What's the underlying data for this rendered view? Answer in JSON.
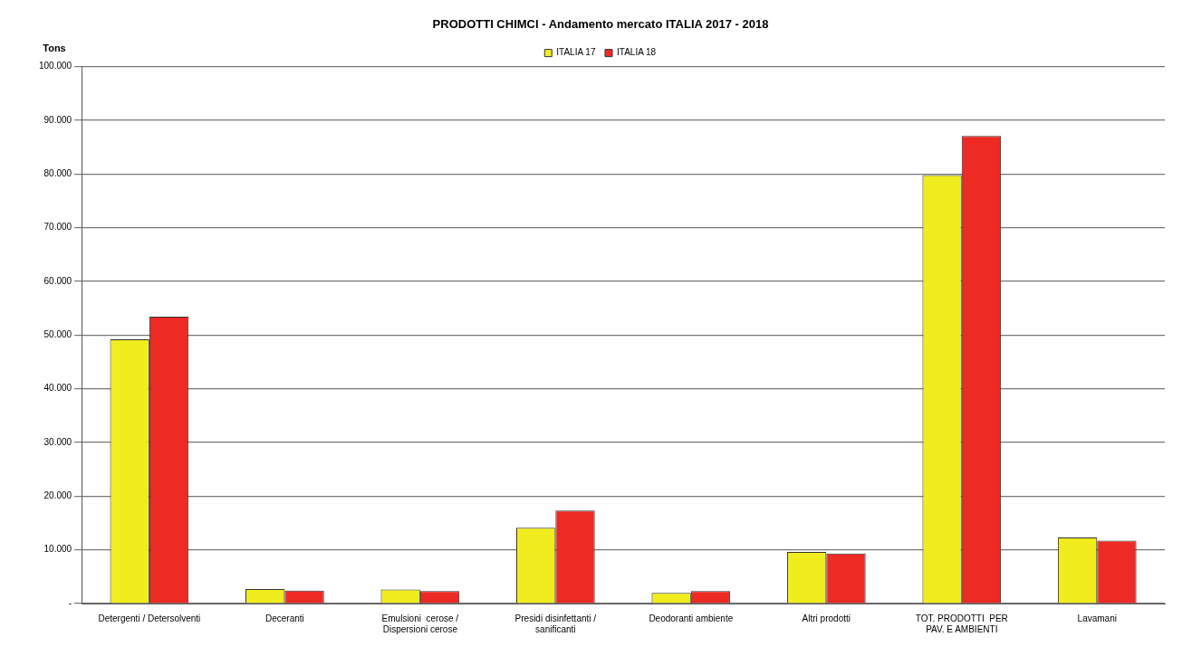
{
  "chart_data": {
    "type": "bar",
    "title": "PRODOTTI CHIMCI - Andamento mercato ITALIA 2017 - 2018",
    "ylabel": "Tons",
    "categories": [
      "Detergenti / Detersolventi",
      "Deceranti",
      [
        "Emulsioni  cerose /",
        "Dispersioni cerose"
      ],
      [
        "Presidi disinfettanti /",
        "sanificanti"
      ],
      "Deodoranti ambiente",
      "Altri prodotti",
      [
        "TOT. PRODOTTI  PER",
        "PAV. E AMBIENTI"
      ],
      "Lavamani"
    ],
    "series": [
      {
        "name": "ITALIA 17",
        "color": "#f0ec1e",
        "values": [
          49200,
          2700,
          2600,
          14100,
          2000,
          9600,
          79800,
          12300
        ]
      },
      {
        "name": "ITALIA 18",
        "color": "#ee2a24",
        "values": [
          53400,
          2400,
          2300,
          17300,
          2300,
          9300,
          87100,
          11700
        ]
      }
    ],
    "ylim": [
      0,
      100000
    ],
    "yticks": [
      {
        "value": 0,
        "label": "-"
      },
      {
        "value": 10000,
        "label": "10.000"
      },
      {
        "value": 20000,
        "label": "20.000"
      },
      {
        "value": 30000,
        "label": "30.000"
      },
      {
        "value": 40000,
        "label": "40.000"
      },
      {
        "value": 50000,
        "label": "50.000"
      },
      {
        "value": 60000,
        "label": "60.000"
      },
      {
        "value": 70000,
        "label": "70.000"
      },
      {
        "value": 80000,
        "label": "80.000"
      },
      {
        "value": 90000,
        "label": "90.000"
      },
      {
        "value": 100000,
        "label": "100.000"
      }
    ],
    "grid": "y",
    "legend": "top"
  }
}
